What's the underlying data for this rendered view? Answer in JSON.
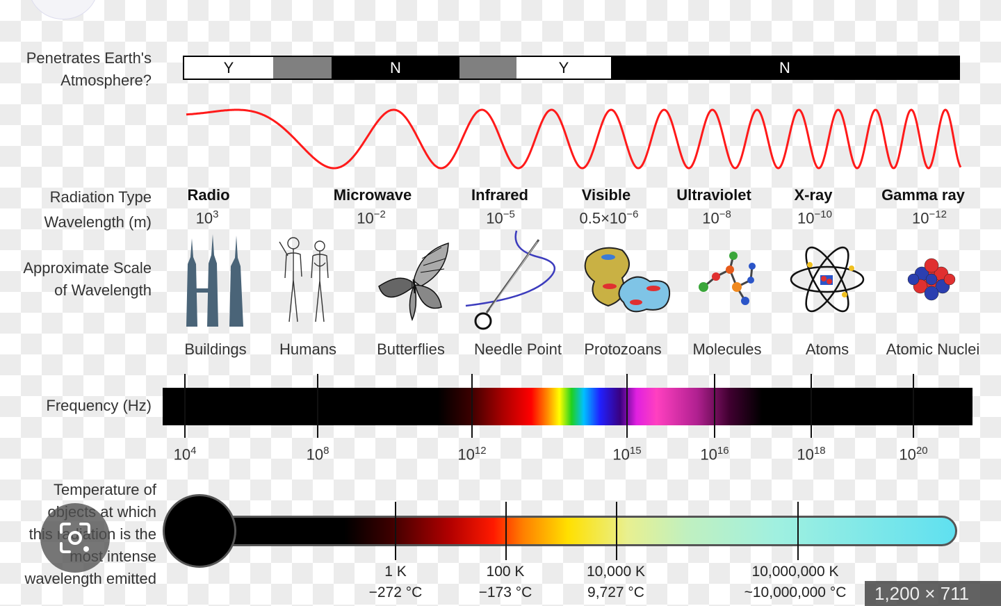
{
  "row_labels": {
    "penetrates": [
      "Penetrates Earth's",
      "Atmosphere?"
    ],
    "radiation_type": "Radiation Type",
    "wavelength": "Wavelength (m)",
    "scale": [
      "Approximate Scale",
      "of Wavelength"
    ],
    "frequency": "Frequency (Hz)",
    "temperature": [
      "Temperature of",
      "objects at which",
      "this radiation is the",
      "most intense",
      "wavelength emitted"
    ]
  },
  "penetration": [
    {
      "label": "Y",
      "color": "#ffffff"
    },
    {
      "label": "",
      "color": "#808080"
    },
    {
      "label": "N",
      "color": "#000000"
    },
    {
      "label": "",
      "color": "#808080"
    },
    {
      "label": "Y",
      "color": "#ffffff"
    },
    {
      "label": "N",
      "color": "#000000"
    }
  ],
  "radiation_types": [
    {
      "name": "Radio",
      "wl_base": "10",
      "wl_exp": "3"
    },
    {
      "name": "Microwave",
      "wl_base": "10",
      "wl_exp": "−2"
    },
    {
      "name": "Infrared",
      "wl_base": "10",
      "wl_exp": "−5"
    },
    {
      "name": "Visible",
      "wl_base": "0.5×10",
      "wl_exp": "−6"
    },
    {
      "name": "Ultraviolet",
      "wl_base": "10",
      "wl_exp": "−8"
    },
    {
      "name": "X-ray",
      "wl_base": "10",
      "wl_exp": "−10"
    },
    {
      "name": "Gamma ray",
      "wl_base": "10",
      "wl_exp": "−12"
    }
  ],
  "scale_objects": [
    {
      "label": "Buildings",
      "icon": "buildings-icon"
    },
    {
      "label": "Humans",
      "icon": "humans-icon"
    },
    {
      "label": "Butterflies",
      "icon": "butterfly-icon"
    },
    {
      "label": "Needle Point",
      "icon": "needle-icon"
    },
    {
      "label": "Protozoans",
      "icon": "protozoan-icon"
    },
    {
      "label": "Molecules",
      "icon": "molecule-icon"
    },
    {
      "label": "Atoms",
      "icon": "atom-icon"
    },
    {
      "label": "Atomic Nuclei",
      "icon": "nucleus-icon"
    }
  ],
  "frequencies": [
    {
      "base": "10",
      "exp": "4"
    },
    {
      "base": "10",
      "exp": "8"
    },
    {
      "base": "10",
      "exp": "12"
    },
    {
      "base": "10",
      "exp": "15"
    },
    {
      "base": "10",
      "exp": "16"
    },
    {
      "base": "10",
      "exp": "18"
    },
    {
      "base": "10",
      "exp": "20"
    }
  ],
  "temperatures": [
    {
      "kelvin": "1 K",
      "celsius": "−272 °C"
    },
    {
      "kelvin": "100 K",
      "celsius": "−173 °C"
    },
    {
      "kelvin": "10,000 K",
      "celsius": "9,727 °C"
    },
    {
      "kelvin": "10,000,000 K",
      "celsius": "~10,000,000 °C"
    }
  ],
  "overlay_badge": "1,200 × 711",
  "colors": {
    "wave": "#ff1a1a",
    "building": "#4a6478",
    "thermometer_end": "#5fe0f0"
  }
}
